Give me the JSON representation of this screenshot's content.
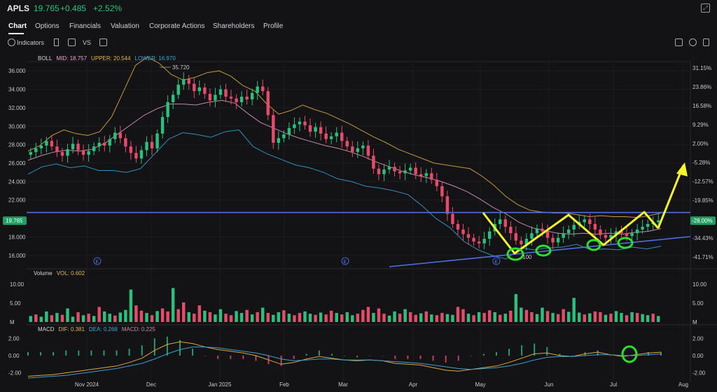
{
  "header": {
    "ticker": "APLS",
    "price": "19.765",
    "change": "+0.485",
    "change_pct": "+2.52%",
    "accent_up": "#29c17d",
    "accent_down": "#e84b6a"
  },
  "tabs": [
    "Chart",
    "Options",
    "Financials",
    "Valuation",
    "Corporate Actions",
    "Shareholders",
    "Profile"
  ],
  "toolbar": {
    "indicators_label": "Indicators"
  },
  "chart_data": [
    {
      "type": "candlestick",
      "indicator": {
        "name": "BOLL",
        "mid": "MID: 18.757",
        "upper": "UPPER: 20.544",
        "lower": "LOWER: 16.970"
      },
      "y_ticks": [
        "36.000",
        "34.000",
        "32.000",
        "30.000",
        "28.000",
        "26.000",
        "24.000",
        "22.000",
        "18.000",
        "16.000"
      ],
      "pct_ticks": [
        "31.15%",
        "23.86%",
        "16.58%",
        "9.29%",
        "2.00%",
        "-5.28%",
        "-12.57%",
        "-19.85%",
        "-28.00%",
        "-34.43%",
        "-41.71%"
      ],
      "ylim": [
        15.0,
        37.0
      ],
      "current_price_label": "19.765",
      "current_pct_label": "-28.00%",
      "max_annotation": "35.720",
      "min_annotation": "100",
      "event_marker": "E",
      "x_ticks": [
        "Nov 2024",
        "Dec",
        "Jan 2025",
        "Feb",
        "Mar",
        "Apr",
        "May",
        "Jun",
        "Jul",
        "Aug"
      ],
      "close_series": [
        27.2,
        27.6,
        27.9,
        28.4,
        27.8,
        27.2,
        26.8,
        27.5,
        28.1,
        27.4,
        26.9,
        27.3,
        27.8,
        28.2,
        27.9,
        28.6,
        29.3,
        28.7,
        27.8,
        27.1,
        26.5,
        27.4,
        28.3,
        27.6,
        29.2,
        31.0,
        32.6,
        33.4,
        34.5,
        35.1,
        34.6,
        33.8,
        34.2,
        33.5,
        32.8,
        33.4,
        34.0,
        33.2,
        33.0,
        32.6,
        33.2,
        32.9,
        33.6,
        34.3,
        33.8,
        31.2,
        28.2,
        28.7,
        29.1,
        29.8,
        30.2,
        30.5,
        30.1,
        29.4,
        29.9,
        29.2,
        28.6,
        28.9,
        29.3,
        28.4,
        27.8,
        27.2,
        27.6,
        27.9,
        26.8,
        25.4,
        24.8,
        25.3,
        25.6,
        25.1,
        24.9,
        25.2,
        25.5,
        24.8,
        24.6,
        24.9,
        24.2,
        23.5,
        22.4,
        20.5,
        19.4,
        18.8,
        18.3,
        17.9,
        17.5,
        17.3,
        17.8,
        18.6,
        19.4,
        19.9,
        19.1,
        18.4,
        17.6,
        17.2,
        17.8,
        18.4,
        18.9,
        18.6,
        17.9,
        17.4,
        17.9,
        18.4,
        18.8,
        19.3,
        19.6,
        19.9,
        19.4,
        18.8,
        18.2,
        17.9,
        18.2,
        18.6,
        18.4,
        18.1,
        18.4,
        18.8,
        19.1,
        19.4,
        19.6,
        19.8
      ],
      "upper_band": [
        27.3,
        27.9,
        29.0,
        29.6,
        29.2,
        29.0,
        29.4,
        31.0,
        33.8,
        36.6,
        37.5,
        36.8,
        35.6,
        35.0,
        35.3,
        35.8,
        36.0,
        35.4,
        34.4,
        33.8,
        32.4,
        31.3,
        31.7,
        32.3,
        31.8,
        31.4,
        30.8,
        30.2,
        29.5,
        28.8,
        28.2,
        27.5,
        27.0,
        26.5,
        26.0,
        25.8,
        25.6,
        25.4,
        24.6,
        23.6,
        22.4,
        21.5,
        20.9,
        20.7,
        20.6,
        20.6,
        20.4,
        20.2,
        20.3,
        20.2,
        20.2,
        20.1,
        20.3,
        20.6
      ],
      "mid_band": [
        26.3,
        26.8,
        27.2,
        27.4,
        27.3,
        27.5,
        28.2,
        29.2,
        30.2,
        31.2,
        31.9,
        32.4,
        32.4,
        32.3,
        32.6,
        32.8,
        32.5,
        31.4,
        30.4,
        29.8,
        29.2,
        28.7,
        28.3,
        27.9,
        27.6,
        27.2,
        26.7,
        26.1,
        25.6,
        25.1,
        24.7,
        24.4,
        24.0,
        23.5,
        22.9,
        22.1,
        21.2,
        20.5,
        19.6,
        19.0,
        18.7,
        18.4,
        18.3,
        18.4,
        18.3,
        18.4,
        18.3,
        18.5,
        18.6,
        18.9
      ],
      "lower_band": [
        24.8,
        25.6,
        25.9,
        25.5,
        25.7,
        25.2,
        25.2,
        25.0,
        25.4,
        27.0,
        28.6,
        29.3,
        29.1,
        28.8,
        29.4,
        29.6,
        27.8,
        27.0,
        26.4,
        25.8,
        25.5,
        25.0,
        24.3,
        24.0,
        23.5,
        23.3,
        23.0,
        22.6,
        21.4,
        20.0,
        19.0,
        17.5,
        16.6,
        16.0,
        15.6,
        16.8,
        16.6,
        16.8,
        16.9,
        17.2,
        16.6,
        16.7,
        16.6,
        16.9,
        16.7,
        17.0
      ]
    },
    {
      "type": "bar",
      "indicator": {
        "name": "Volume",
        "value": "VOL: 0.602"
      },
      "y_ticks": [
        "10.00",
        "5.00",
        "M"
      ],
      "ylim": [
        0,
        11.5
      ],
      "values": [
        1.6,
        2.0,
        1.4,
        2.8,
        1.8,
        2.4,
        1.9,
        3.6,
        1.4,
        2.6,
        1.8,
        2.2,
        1.6,
        4.0,
        2.8,
        2.2,
        1.7,
        2.5,
        3.2,
        8.6,
        4.4,
        3.0,
        2.4,
        1.8,
        2.9,
        3.6,
        2.8,
        9.0,
        3.4,
        5.2,
        2.6,
        2.2,
        4.4,
        3.0,
        2.6,
        2.0,
        3.4,
        2.2,
        1.8,
        2.9,
        2.4,
        3.2,
        2.0,
        2.6,
        3.8,
        2.4,
        1.9,
        2.6,
        3.1,
        2.2,
        1.8,
        2.4,
        2.8,
        2.2,
        1.9,
        2.5,
        2.0,
        3.0,
        2.4,
        2.0,
        2.6,
        1.8,
        2.2,
        3.2,
        4.0,
        2.4,
        3.6,
        2.2,
        1.7,
        2.8,
        2.2,
        3.4,
        2.6,
        1.9,
        2.3,
        2.8,
        2.0,
        1.8,
        2.4,
        2.1,
        1.9,
        4.0,
        3.4,
        2.2,
        1.8,
        2.6,
        2.4,
        3.1,
        2.6,
        1.9,
        2.2,
        3.0,
        7.4,
        3.8,
        3.2,
        2.6,
        2.1,
        3.8,
        2.9,
        2.4,
        2.1,
        3.4,
        2.7,
        6.4,
        2.5,
        2.0,
        2.3,
        2.8,
        2.6,
        1.9,
        2.2,
        2.9,
        2.4,
        1.8,
        2.6,
        2.4,
        2.1,
        1.8,
        2.2,
        1.6
      ],
      "up": [
        1,
        0,
        1,
        1,
        0,
        1,
        0,
        1,
        1,
        0,
        1,
        0,
        1,
        0,
        1,
        1,
        0,
        1,
        1,
        1,
        0,
        0,
        1,
        0,
        1,
        0,
        0,
        1,
        0,
        0,
        1,
        0,
        0,
        1,
        0,
        1,
        1,
        0,
        0,
        1,
        1,
        0,
        1,
        0,
        1,
        0,
        1,
        1,
        0,
        1,
        0,
        0,
        1,
        1,
        0,
        1,
        0,
        0,
        1,
        0,
        1,
        1,
        0,
        0,
        0,
        1,
        0,
        0,
        1,
        1,
        0,
        1,
        0,
        0,
        1,
        0,
        1,
        0,
        0,
        1,
        1,
        0,
        0,
        1,
        0,
        1,
        0,
        0,
        1,
        0,
        1,
        0,
        1,
        1,
        0,
        0,
        1,
        1,
        0,
        1,
        0,
        0,
        1,
        1,
        1,
        0,
        1,
        0,
        0,
        1,
        0,
        1,
        1,
        0,
        1,
        0,
        1,
        1,
        0,
        1
      ]
    },
    {
      "type": "line",
      "indicator": {
        "name": "MACD",
        "dif": "DIF: 0.381",
        "dea": "DEA: 0.268",
        "macd": "MACD: 0.225"
      },
      "y_ticks": [
        "2.00",
        "0.00",
        "-2.00"
      ],
      "ylim": [
        -2.6,
        2.6
      ],
      "dif": [
        -2.4,
        -2.3,
        -2.2,
        -2.0,
        -1.8,
        -1.6,
        -1.4,
        -1.2,
        -0.8,
        -0.3,
        0.6,
        1.3,
        1.6,
        1.4,
        1.0,
        0.7,
        0.5,
        0.3,
        0.0,
        -0.5,
        -1.0,
        -0.8,
        -0.4,
        -0.1,
        -0.3,
        -0.5,
        -0.6,
        -0.5,
        -0.6,
        -0.9,
        -1.0,
        -1.1,
        -1.4,
        -1.7,
        -1.8,
        -1.6,
        -1.4,
        -1.2,
        -0.8,
        -0.3,
        0.2,
        0.3,
        0.0,
        -0.1,
        0.2,
        0.4,
        0.1,
        -0.1,
        0.1,
        0.3,
        0.4
      ],
      "dea": [
        -2.6,
        -2.5,
        -2.4,
        -2.3,
        -2.1,
        -1.9,
        -1.7,
        -1.5,
        -1.2,
        -0.9,
        -0.4,
        0.2,
        0.7,
        1.0,
        1.0,
        0.9,
        0.7,
        0.5,
        0.3,
        0.0,
        -0.4,
        -0.6,
        -0.5,
        -0.4,
        -0.4,
        -0.5,
        -0.5,
        -0.5,
        -0.6,
        -0.7,
        -0.8,
        -0.9,
        -1.1,
        -1.3,
        -1.5,
        -1.6,
        -1.5,
        -1.4,
        -1.2,
        -0.9,
        -0.5,
        -0.2,
        -0.1,
        -0.1,
        0.0,
        0.1,
        0.1,
        0.0,
        0.0,
        0.1,
        0.2
      ],
      "x_ticks": [
        "Nov 2024",
        "Dec",
        "Jan 2025",
        "Feb",
        "Mar",
        "Apr",
        "May",
        "Jun",
        "Jul",
        "Aug"
      ]
    }
  ]
}
